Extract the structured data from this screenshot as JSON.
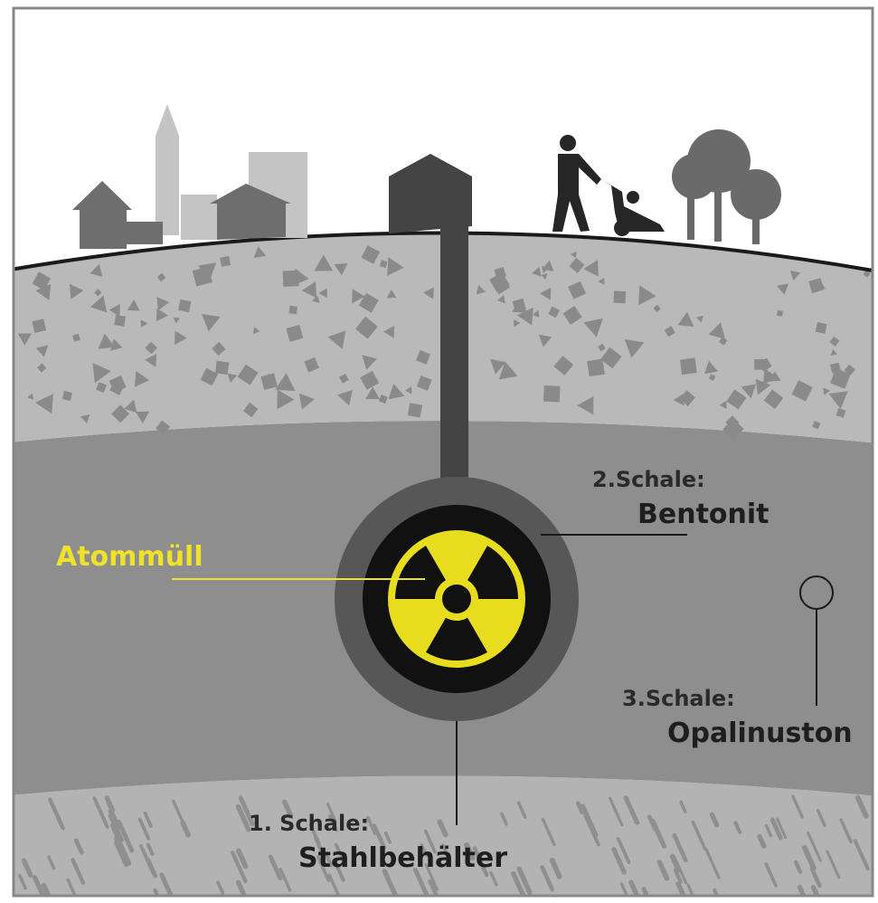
{
  "labels": {
    "waste": "Atommüll",
    "shell_2": {
      "number": "2.Schale:",
      "material": "Bentonit"
    },
    "shell_3": {
      "number": "3.Schale:",
      "material": "Opalinuston"
    },
    "shell_1": {
      "number": "1. Schale:",
      "material": "Stahlbehälter"
    }
  }
}
